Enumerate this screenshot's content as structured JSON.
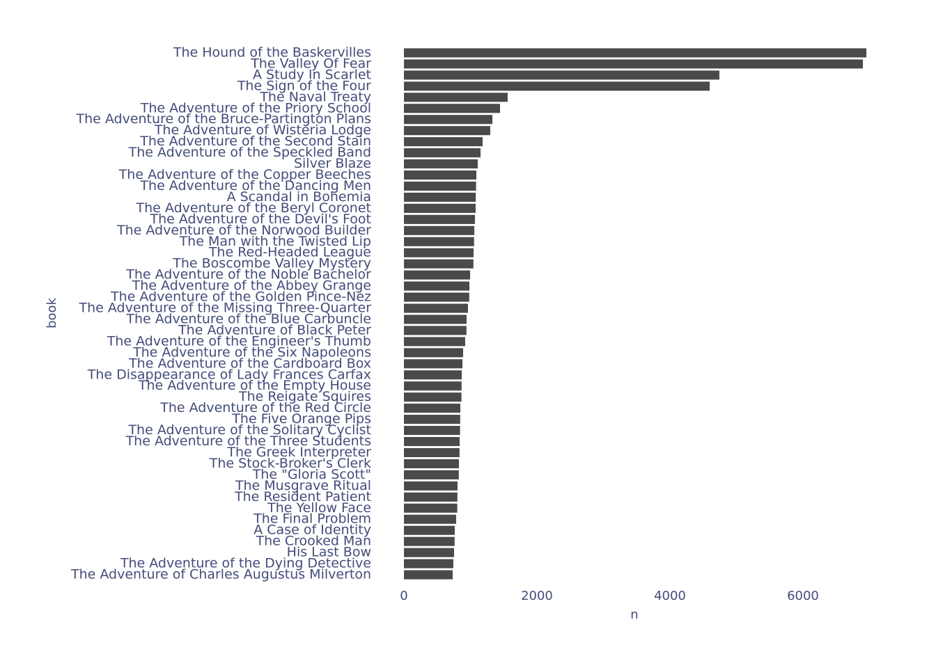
{
  "chart_data": {
    "type": "bar",
    "orientation": "horizontal",
    "x_label": "n",
    "y_label": "book",
    "categories": [
      "The Hound of the Baskervilles",
      "The Valley Of Fear",
      "A Study In Scarlet",
      "The Sign of the Four",
      "The Naval Treaty",
      "The Adventure of the Priory School",
      "The Adventure of the Bruce-Partington Plans",
      "The Adventure of Wisteria Lodge",
      "The Adventure of the Second Stain",
      "The Adventure of the Speckled Band",
      "Silver Blaze",
      "The Adventure of the Copper Beeches",
      "The Adventure of the Dancing Men",
      "A Scandal in Bohemia",
      "The Adventure of the Beryl Coronet",
      "The Adventure of the Devil's Foot",
      "The Adventure of the Norwood Builder",
      "The Man with the Twisted Lip",
      "The Red-Headed League",
      "The Boscombe Valley Mystery",
      "The Adventure of the Noble Bachelor",
      "The Adventure of the Abbey Grange",
      "The Adventure of the Golden Pince-Nez",
      "The Adventure of the Missing Three-Quarter",
      "The Adventure of the Blue Carbuncle",
      "The Adventure of Black Peter",
      "The Adventure of the Engineer's Thumb",
      "The Adventure of the Six Napoleons",
      "The Adventure of the Cardboard Box",
      "The Disappearance of Lady Frances Carfax",
      "The Adventure of the Empty House",
      "The Reigate Squires",
      "The Adventure of the Red Circle",
      "The Five Orange Pips",
      "The Adventure of the Solitary Cyclist",
      "The Adventure of the Three Students",
      "The Greek Interpreter",
      "The Stock-Broker's Clerk",
      "The \"Gloria Scott\"",
      "The Musgrave Ritual",
      "The Resident Patient",
      "The Yellow Face",
      "The Final Problem",
      "A Case of Identity",
      "The Crooked Man",
      "His Last Bow",
      "The Adventure of the Dying Detective",
      "The Adventure of Charles Augustus Milverton"
    ],
    "values": [
      6953,
      6901,
      4743,
      4597,
      1560,
      1445,
      1330,
      1298,
      1183,
      1152,
      1110,
      1089,
      1085,
      1080,
      1078,
      1068,
      1058,
      1055,
      1047,
      1045,
      995,
      984,
      982,
      963,
      942,
      940,
      921,
      890,
      880,
      869,
      867,
      865,
      848,
      846,
      844,
      838,
      836,
      827,
      825,
      806,
      804,
      802,
      785,
      764,
      762,
      754,
      743,
      733
    ],
    "color": "#4a4a4a",
    "xlim": [
      0,
      6953
    ],
    "xticks": [
      0,
      2000,
      4000,
      6000
    ],
    "grid": false
  }
}
